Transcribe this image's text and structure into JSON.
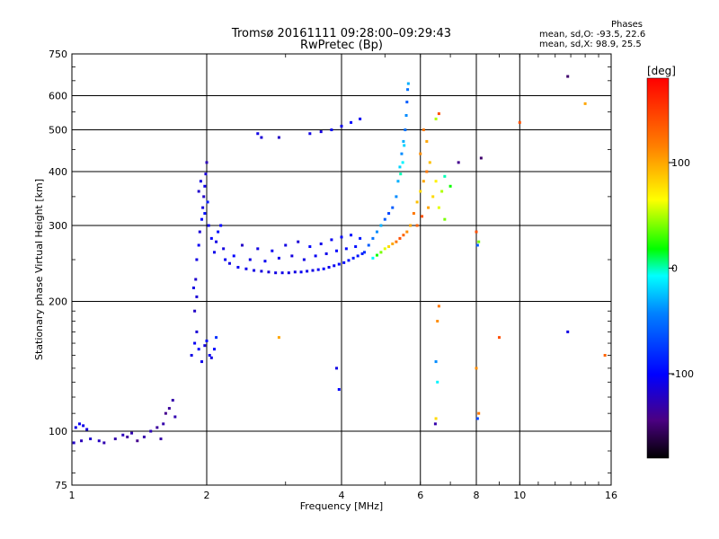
{
  "header": {
    "title": "Tromsø 20161111 09:28:00–09:29:43",
    "subtitle": "RwPretec (Bp)"
  },
  "stats": {
    "heading": "Phases",
    "line_o": "mean, sd,O:  -93.5,  22.6",
    "line_x": "mean, sd,X:   98.9,  25.5"
  },
  "colorbar": {
    "unit_label": "[deg]",
    "ticks": [
      {
        "value": 100,
        "label": "100"
      },
      {
        "value": 0,
        "label": "0"
      },
      {
        "value": -100,
        "label": "-100"
      }
    ],
    "range": [
      -180,
      180
    ]
  },
  "chart_data": {
    "type": "scatter",
    "title": "Tromsø 20161111 09:28:00–09:29:43",
    "subtitle": "RwPretec (Bp)",
    "xlabel": "Frequency [MHz]",
    "ylabel": "Stationary phase Virtual Height [km]",
    "x_scale": "log",
    "y_scale": "log",
    "xlim": [
      1,
      16
    ],
    "ylim": [
      75,
      750
    ],
    "x_ticks": [
      1,
      2,
      4,
      6,
      8,
      10,
      16
    ],
    "x_tick_labels": [
      "1",
      "2",
      "4",
      "6",
      "8",
      "10",
      "16"
    ],
    "y_ticks": [
      75,
      100,
      200,
      300,
      400,
      500,
      600,
      750
    ],
    "y_tick_labels": [
      "75",
      "100",
      "200",
      "300",
      "400",
      "500",
      "600",
      "750"
    ],
    "grid": true,
    "color_scale": "phase in degrees, -180 to 180 (dark → blue → cyan → green → yellow → red)",
    "points": [
      [
        1.02,
        102,
        -110
      ],
      [
        1.04,
        104,
        -105
      ],
      [
        1.06,
        103,
        -108
      ],
      [
        1.08,
        101,
        -112
      ],
      [
        1.01,
        94,
        -120
      ],
      [
        1.05,
        95,
        -125
      ],
      [
        1.1,
        96,
        -118
      ],
      [
        1.15,
        95,
        -122
      ],
      [
        1.18,
        94,
        -128
      ],
      [
        1.25,
        96,
        -130
      ],
      [
        1.3,
        98,
        -125
      ],
      [
        1.33,
        97,
        -135
      ],
      [
        1.36,
        99,
        -128
      ],
      [
        1.4,
        95,
        -140
      ],
      [
        1.45,
        97,
        -130
      ],
      [
        1.5,
        100,
        -125
      ],
      [
        1.55,
        102,
        -135
      ],
      [
        1.6,
        104,
        -130
      ],
      [
        1.62,
        110,
        -140
      ],
      [
        1.65,
        113,
        -135
      ],
      [
        1.68,
        118,
        -130
      ],
      [
        1.7,
        108,
        -128
      ],
      [
        1.58,
        96,
        -132
      ],
      [
        1.85,
        150,
        -110
      ],
      [
        1.88,
        160,
        -105
      ],
      [
        1.9,
        170,
        -115
      ],
      [
        1.92,
        155,
        -100
      ],
      [
        1.95,
        145,
        -108
      ],
      [
        1.98,
        158,
        -112
      ],
      [
        2.0,
        162,
        -95
      ],
      [
        2.03,
        150,
        -105
      ],
      [
        2.05,
        148,
        -110
      ],
      [
        2.08,
        155,
        -100
      ],
      [
        2.1,
        165,
        -80
      ],
      [
        1.88,
        190,
        -120
      ],
      [
        1.9,
        205,
        -115
      ],
      [
        1.87,
        215,
        -110
      ],
      [
        1.89,
        225,
        -118
      ],
      [
        1.9,
        250,
        -110
      ],
      [
        1.92,
        270,
        -105
      ],
      [
        1.93,
        290,
        -115
      ],
      [
        1.95,
        310,
        -100
      ],
      [
        1.96,
        330,
        -112
      ],
      [
        1.97,
        350,
        -120
      ],
      [
        1.98,
        370,
        -108
      ],
      [
        1.99,
        395,
        -115
      ],
      [
        2.0,
        420,
        -125
      ],
      [
        1.94,
        380,
        -110
      ],
      [
        1.92,
        360,
        -118
      ],
      [
        1.98,
        320,
        -95
      ],
      [
        2.02,
        300,
        -105
      ],
      [
        2.05,
        280,
        -100
      ],
      [
        2.08,
        260,
        -108
      ],
      [
        2.1,
        275,
        -110
      ],
      [
        2.12,
        290,
        -95
      ],
      [
        2.15,
        300,
        -100
      ],
      [
        2.18,
        265,
        -112
      ],
      [
        2.2,
        250,
        -105
      ],
      [
        2.01,
        340,
        -90
      ],
      [
        2.25,
        245,
        -110
      ],
      [
        2.35,
        240,
        -105
      ],
      [
        2.45,
        238,
        -108
      ],
      [
        2.55,
        236,
        -110
      ],
      [
        2.65,
        235,
        -112
      ],
      [
        2.75,
        234,
        -115
      ],
      [
        2.85,
        233,
        -110
      ],
      [
        2.95,
        233,
        -108
      ],
      [
        3.05,
        233,
        -112
      ],
      [
        3.15,
        234,
        -110
      ],
      [
        3.25,
        234,
        -105
      ],
      [
        3.35,
        235,
        -108
      ],
      [
        3.45,
        236,
        -110
      ],
      [
        3.55,
        237,
        -105
      ],
      [
        3.65,
        238,
        -100
      ],
      [
        3.75,
        240,
        -108
      ],
      [
        3.85,
        242,
        -105
      ],
      [
        3.95,
        244,
        -100
      ],
      [
        4.05,
        246,
        -98
      ],
      [
        4.15,
        249,
        -95
      ],
      [
        4.25,
        252,
        -90
      ],
      [
        4.35,
        255,
        -92
      ],
      [
        4.45,
        258,
        -88
      ],
      [
        2.3,
        255,
        -100
      ],
      [
        2.5,
        250,
        -110
      ],
      [
        2.7,
        248,
        -105
      ],
      [
        2.9,
        252,
        -108
      ],
      [
        3.1,
        255,
        -112
      ],
      [
        3.3,
        250,
        -110
      ],
      [
        3.5,
        255,
        -105
      ],
      [
        3.7,
        258,
        -108
      ],
      [
        3.9,
        262,
        -100
      ],
      [
        4.1,
        265,
        -98
      ],
      [
        4.3,
        268,
        -95
      ],
      [
        2.4,
        270,
        -120
      ],
      [
        2.6,
        265,
        -110
      ],
      [
        2.8,
        262,
        -105
      ],
      [
        3.0,
        270,
        -110
      ],
      [
        3.2,
        275,
        -115
      ],
      [
        3.4,
        268,
        -100
      ],
      [
        3.6,
        272,
        -108
      ],
      [
        3.8,
        278,
        -105
      ],
      [
        4.0,
        282,
        -100
      ],
      [
        4.2,
        285,
        -95
      ],
      [
        4.4,
        280,
        -90
      ],
      [
        4.5,
        260,
        -80
      ],
      [
        4.6,
        270,
        -60
      ],
      [
        4.7,
        280,
        -50
      ],
      [
        4.8,
        290,
        -40
      ],
      [
        4.9,
        300,
        -30
      ],
      [
        5.0,
        310,
        -60
      ],
      [
        5.1,
        320,
        -70
      ],
      [
        4.7,
        252,
        -10
      ],
      [
        4.8,
        256,
        20
      ],
      [
        4.9,
        260,
        40
      ],
      [
        5.0,
        265,
        60
      ],
      [
        5.1,
        268,
        80
      ],
      [
        5.2,
        272,
        100
      ],
      [
        5.3,
        275,
        120
      ],
      [
        5.4,
        280,
        140
      ],
      [
        5.5,
        285,
        130
      ],
      [
        5.6,
        290,
        110
      ],
      [
        5.2,
        330,
        -60
      ],
      [
        5.3,
        350,
        -40
      ],
      [
        5.35,
        380,
        -30
      ],
      [
        5.4,
        410,
        -20
      ],
      [
        5.45,
        440,
        -40
      ],
      [
        5.5,
        470,
        -30
      ],
      [
        5.55,
        500,
        -50
      ],
      [
        5.58,
        540,
        -40
      ],
      [
        5.6,
        580,
        -60
      ],
      [
        5.62,
        620,
        -50
      ],
      [
        5.64,
        640,
        -30
      ],
      [
        5.52,
        460,
        -20
      ],
      [
        5.48,
        420,
        -10
      ],
      [
        5.42,
        395,
        0
      ],
      [
        5.7,
        300,
        100
      ],
      [
        5.8,
        320,
        120
      ],
      [
        5.9,
        340,
        90
      ],
      [
        6.0,
        360,
        80
      ],
      [
        6.1,
        380,
        100
      ],
      [
        6.2,
        400,
        120
      ],
      [
        6.3,
        420,
        90
      ],
      [
        6.0,
        440,
        110
      ],
      [
        6.2,
        470,
        100
      ],
      [
        6.1,
        500,
        120
      ],
      [
        6.4,
        350,
        80
      ],
      [
        6.6,
        330,
        60
      ],
      [
        6.8,
        310,
        40
      ],
      [
        6.5,
        380,
        70
      ],
      [
        6.7,
        360,
        50
      ],
      [
        5.9,
        300,
        130
      ],
      [
        6.05,
        315,
        140
      ],
      [
        6.25,
        330,
        100
      ],
      [
        6.5,
        530,
        50
      ],
      [
        6.6,
        545,
        140
      ],
      [
        6.8,
        390,
        0
      ],
      [
        7.0,
        370,
        20
      ],
      [
        7.3,
        420,
        -140
      ],
      [
        6.55,
        180,
        110
      ],
      [
        6.6,
        195,
        120
      ],
      [
        6.5,
        145,
        -40
      ],
      [
        6.55,
        130,
        -10
      ],
      [
        6.5,
        107,
        80
      ],
      [
        6.48,
        104,
        -130
      ],
      [
        8.0,
        290,
        140
      ],
      [
        8.1,
        275,
        40
      ],
      [
        8.05,
        270,
        -60
      ],
      [
        8.2,
        430,
        -150
      ],
      [
        8.0,
        140,
        110
      ],
      [
        8.1,
        110,
        120
      ],
      [
        8.05,
        107,
        -70
      ],
      [
        9.0,
        165,
        140
      ],
      [
        10.0,
        520,
        140
      ],
      [
        12.8,
        665,
        -150
      ],
      [
        12.8,
        170,
        -110
      ],
      [
        14.0,
        575,
        100
      ],
      [
        15.5,
        150,
        130
      ],
      [
        2.9,
        165,
        100
      ],
      [
        3.9,
        140,
        -110
      ],
      [
        3.95,
        125,
        -100
      ],
      [
        2.6,
        490,
        -110
      ],
      [
        2.65,
        480,
        -115
      ],
      [
        2.9,
        480,
        -120
      ],
      [
        3.4,
        490,
        -110
      ],
      [
        3.6,
        495,
        -112
      ],
      [
        3.8,
        500,
        -105
      ],
      [
        4.0,
        510,
        -108
      ],
      [
        4.2,
        520,
        -100
      ],
      [
        4.4,
        530,
        -105
      ]
    ]
  }
}
